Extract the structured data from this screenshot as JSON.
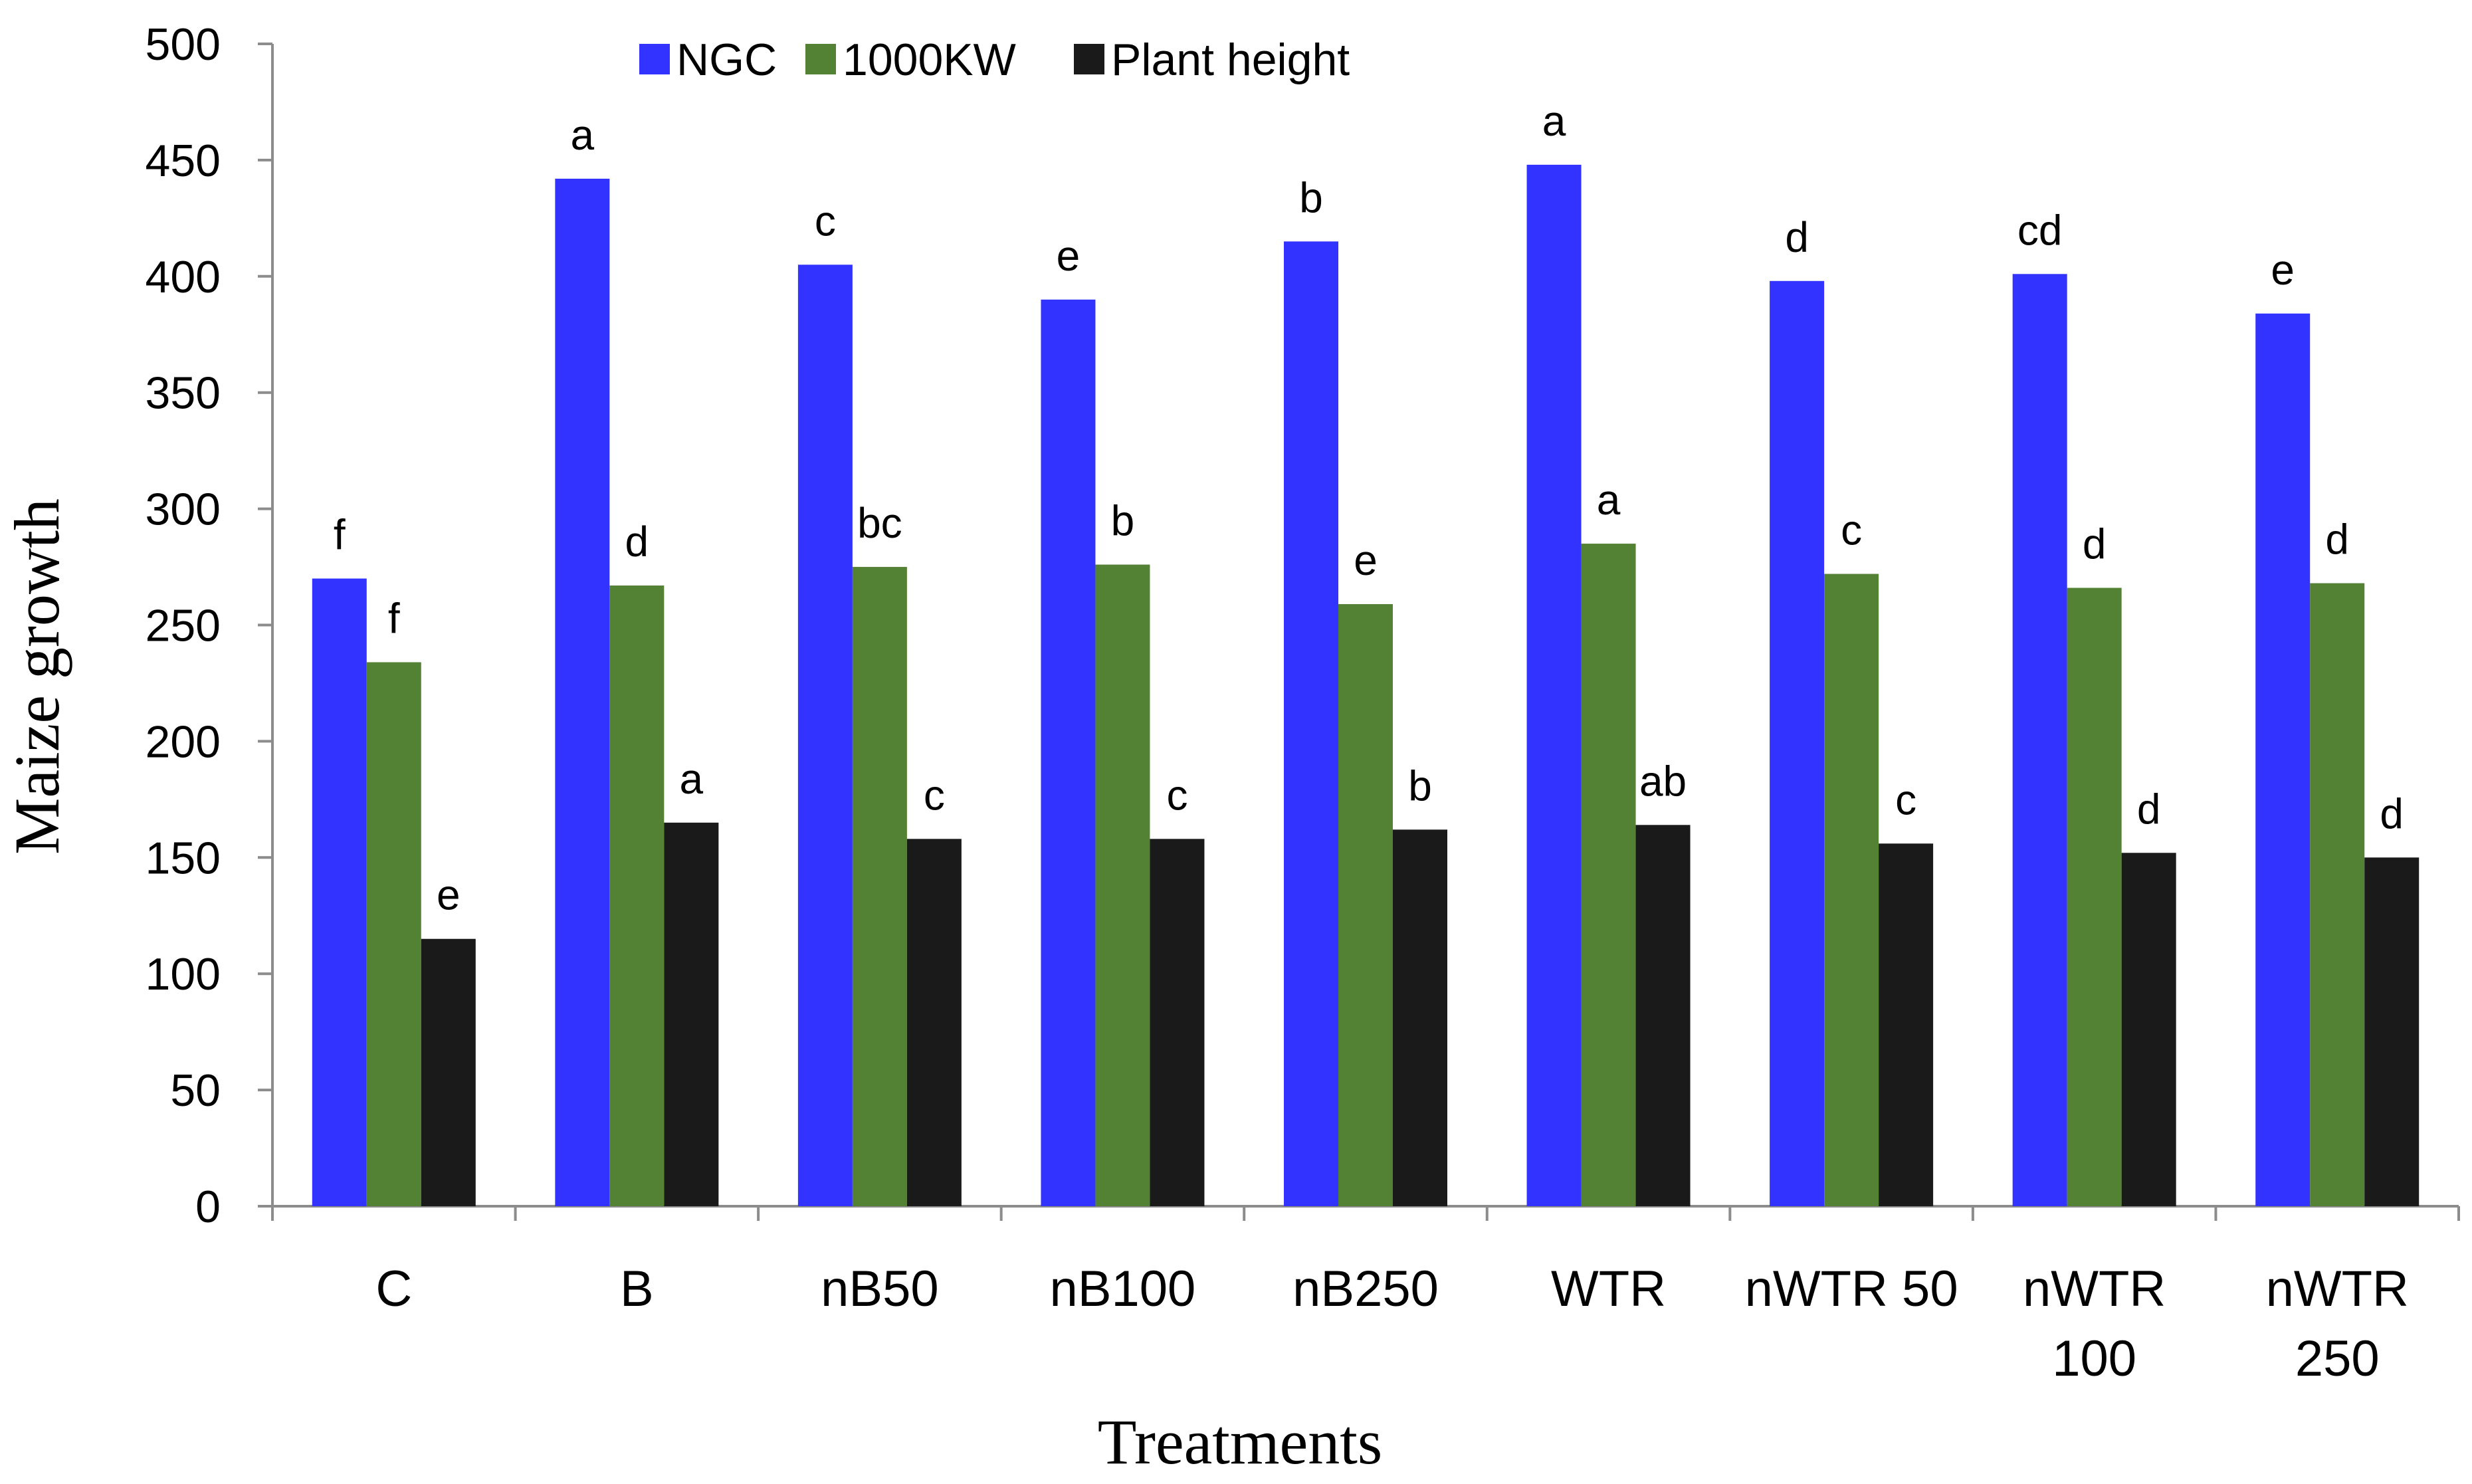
{
  "chart_data": {
    "type": "bar",
    "title": "",
    "xlabel": "Treatments",
    "ylabel": "Maize growth",
    "ylim": [
      0,
      500
    ],
    "yticks": [
      0,
      50,
      100,
      150,
      200,
      250,
      300,
      350,
      400,
      450,
      500
    ],
    "grid": false,
    "legend_position": "top",
    "categories": [
      [
        "C"
      ],
      [
        "B"
      ],
      [
        "nB50"
      ],
      [
        "nB100"
      ],
      [
        "nB250"
      ],
      [
        "WTR"
      ],
      [
        "nWTR 50"
      ],
      [
        "nWTR",
        "100"
      ],
      [
        "nWTR",
        "250"
      ]
    ],
    "series": [
      {
        "name": "NGC",
        "color": "#3333ff",
        "values": [
          270,
          442,
          405,
          390,
          415,
          448,
          398,
          401,
          384
        ],
        "labels": [
          "f",
          "a",
          "c",
          "e",
          "b",
          "a",
          "d",
          "cd",
          "e"
        ]
      },
      {
        "name": "1000KW",
        "color": "#548235",
        "values": [
          234,
          267,
          275,
          276,
          259,
          285,
          272,
          266,
          268
        ],
        "labels": [
          "f",
          "d",
          "bc",
          "b",
          "e",
          "a",
          "c",
          "d",
          "d"
        ]
      },
      {
        "name": "Plant height",
        "color": "#1a1a1a",
        "values": [
          115,
          165,
          158,
          158,
          162,
          164,
          156,
          152,
          150
        ],
        "labels": [
          "e",
          "a",
          "c",
          "c",
          "b",
          "ab",
          "c",
          "d",
          "d"
        ]
      }
    ]
  }
}
